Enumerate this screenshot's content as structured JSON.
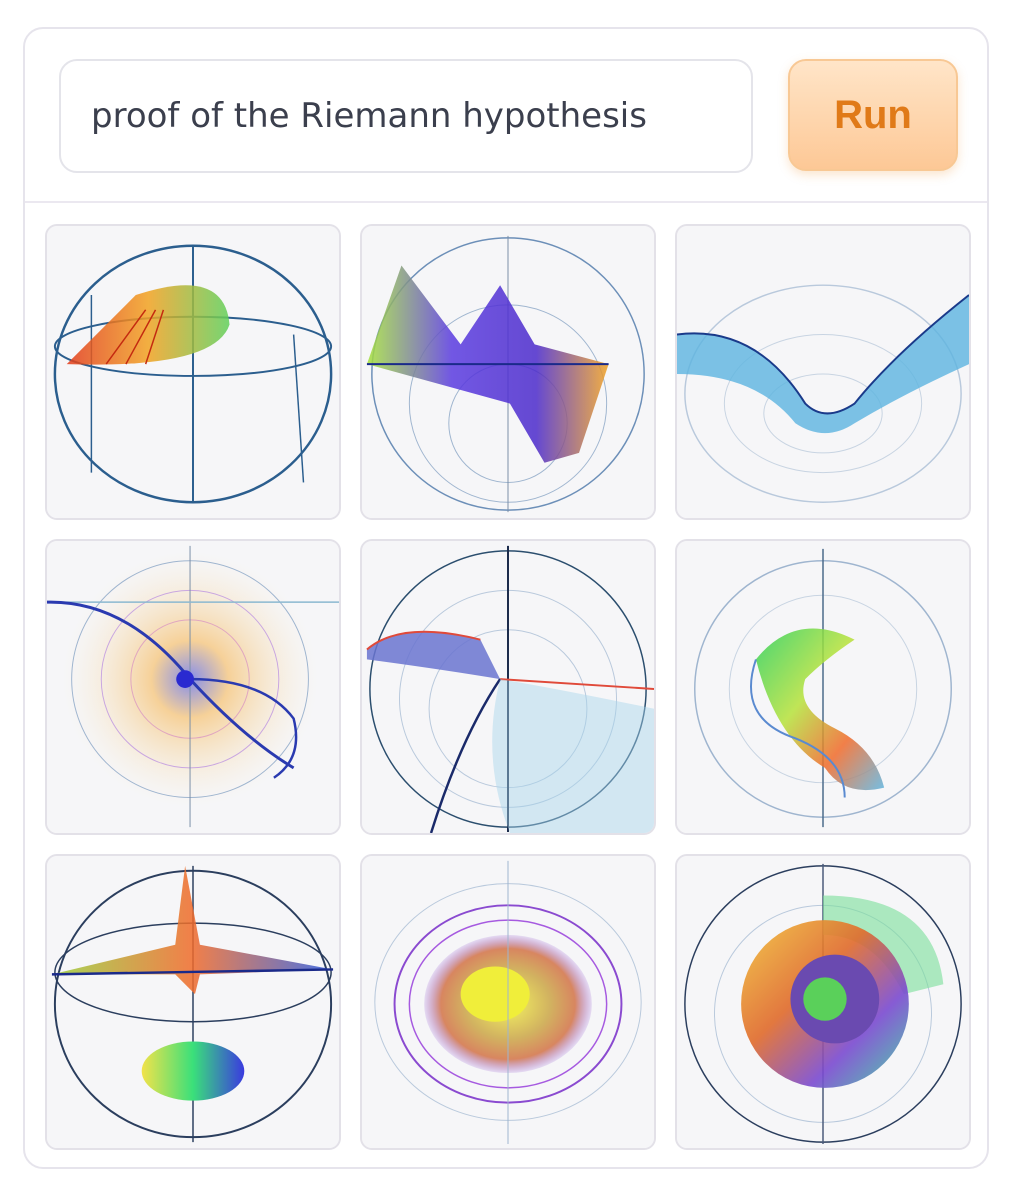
{
  "prompt": {
    "value": "proof of the Riemann hypothesis"
  },
  "run_button": {
    "label": "Run"
  },
  "gallery": {
    "image_count": 9,
    "images": [
      {
        "alt": "generated image 1"
      },
      {
        "alt": "generated image 2"
      },
      {
        "alt": "generated image 3"
      },
      {
        "alt": "generated image 4"
      },
      {
        "alt": "generated image 5"
      },
      {
        "alt": "generated image 6"
      },
      {
        "alt": "generated image 7"
      },
      {
        "alt": "generated image 8"
      },
      {
        "alt": "generated image 9"
      }
    ]
  },
  "colors": {
    "run_text": "#e07a18",
    "run_bg": "#fdc896",
    "border": "#e6e4ec"
  }
}
